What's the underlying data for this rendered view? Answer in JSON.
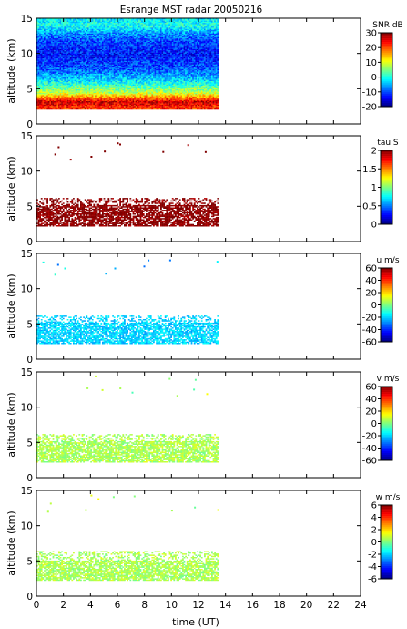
{
  "chart_data": {
    "type": "heatmap",
    "title": "Esrange MST radar 20050216",
    "xlabel": "time (UT)",
    "xlim": [
      0,
      24
    ],
    "x_ticks": [
      "0",
      "2",
      "4",
      "6",
      "8",
      "10",
      "12",
      "14",
      "16",
      "18",
      "20",
      "22",
      "24"
    ],
    "data_end_time": 13.4,
    "panels": [
      {
        "id": "snr",
        "ylabel": "altitude (km)",
        "ylim": [
          0,
          15
        ],
        "y_ticks": [
          "0",
          "5",
          "10",
          "15"
        ],
        "colorbar_label": "SNR dB",
        "colorbar_range": [
          -20,
          30
        ],
        "colorbar_ticks": [
          "30",
          "20",
          "10",
          "0",
          "-10",
          "-20"
        ],
        "altitude_range": [
          2.2,
          15.0
        ],
        "profile": [
          [
            2.5,
            22
          ],
          [
            3.2,
            26
          ],
          [
            3.8,
            18
          ],
          [
            4.5,
            8
          ],
          [
            5.5,
            2
          ],
          [
            6.5,
            -4
          ],
          [
            8,
            -10
          ],
          [
            10,
            -13
          ],
          [
            12,
            -10
          ],
          [
            13,
            -6
          ],
          [
            14,
            0
          ],
          [
            15,
            -2
          ]
        ]
      },
      {
        "id": "tau",
        "ylabel": "altitude (km)",
        "ylim": [
          0,
          15
        ],
        "y_ticks": [
          "0",
          "5",
          "10",
          "15"
        ],
        "colorbar_label": "tau S",
        "colorbar_range": [
          0,
          2
        ],
        "colorbar_ticks": [
          "2",
          "1.5",
          "1",
          "0.5",
          "0"
        ],
        "altitude_range": [
          2.3,
          6.2
        ],
        "typical_value": 2.0
      },
      {
        "id": "u",
        "ylabel": "altitude (km)",
        "ylim": [
          0,
          15
        ],
        "y_ticks": [
          "0",
          "5",
          "10",
          "15"
        ],
        "colorbar_label": "u m/s",
        "colorbar_range": [
          -60,
          60
        ],
        "colorbar_ticks": [
          "60",
          "40",
          "20",
          "0",
          "-20",
          "-40",
          "-60"
        ],
        "altitude_range": [
          2.3,
          6.2
        ],
        "typical_value": -20
      },
      {
        "id": "v",
        "ylabel": "altitude (km)",
        "ylim": [
          0,
          15
        ],
        "y_ticks": [
          "0",
          "5",
          "10",
          "15"
        ],
        "colorbar_label": "v m/s",
        "colorbar_range": [
          -60,
          60
        ],
        "colorbar_ticks": [
          "60",
          "40",
          "20",
          "0",
          "-20",
          "-40",
          "-60"
        ],
        "altitude_range": [
          2.3,
          6.2
        ],
        "typical_value": 5
      },
      {
        "id": "w",
        "ylabel": "altitude (km)",
        "ylim": [
          0,
          15
        ],
        "y_ticks": [
          "0",
          "5",
          "10",
          "15"
        ],
        "colorbar_label": "w m/s",
        "colorbar_range": [
          -6,
          6
        ],
        "colorbar_ticks": [
          "6",
          "4",
          "2",
          "0",
          "-2",
          "-4",
          "-6"
        ],
        "altitude_range": [
          2.3,
          6.4
        ],
        "typical_value": 0.5
      }
    ]
  }
}
